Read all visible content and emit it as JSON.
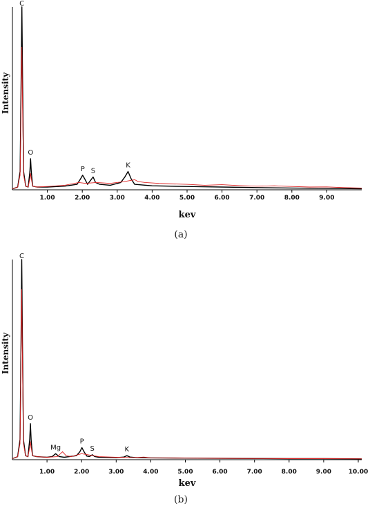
{
  "chart_data": [
    {
      "type": "line",
      "panel_label": "(a)",
      "xlabel": "kev",
      "ylabel": "Intensity",
      "xlim": [
        0,
        10
      ],
      "ylim": [
        0,
        100
      ],
      "x_ticks": [
        "1.00",
        "2.00",
        "3.00",
        "4.00",
        "5.00",
        "6.00",
        "7.00",
        "8.00",
        "9.00"
      ],
      "peak_labels": [
        {
          "text": "C",
          "x": 0.27,
          "y": 100
        },
        {
          "text": "O",
          "x": 0.52,
          "y": 17
        },
        {
          "text": "P",
          "x": 2.01,
          "y": 8
        },
        {
          "text": "S",
          "x": 2.31,
          "y": 7
        },
        {
          "text": "K",
          "x": 3.31,
          "y": 10
        }
      ],
      "series": [
        {
          "color": "#000000",
          "x": [
            0.0,
            0.15,
            0.22,
            0.25,
            0.27,
            0.29,
            0.32,
            0.38,
            0.45,
            0.5,
            0.52,
            0.54,
            0.58,
            0.7,
            1.0,
            1.5,
            1.85,
            1.95,
            2.01,
            2.07,
            2.15,
            2.23,
            2.31,
            2.38,
            2.5,
            2.8,
            3.1,
            3.22,
            3.31,
            3.4,
            3.5,
            4.0,
            5.0,
            6.0,
            7.0,
            8.0,
            9.0,
            10.0
          ],
          "y": [
            0.5,
            1.5,
            10,
            60,
            100,
            60,
            10,
            2,
            1.5,
            10,
            17,
            10,
            2,
            1.5,
            1.5,
            2,
            3,
            6,
            8,
            6,
            3,
            5,
            7,
            4,
            3,
            2.5,
            4,
            7,
            10,
            6,
            3,
            2.2,
            1.8,
            1.5,
            1.2,
            1.0,
            0.8,
            0.6
          ]
        },
        {
          "color": "#dd2222",
          "x": [
            0.0,
            0.15,
            0.22,
            0.25,
            0.27,
            0.29,
            0.32,
            0.38,
            0.45,
            0.5,
            0.52,
            0.54,
            0.58,
            0.7,
            1.0,
            1.5,
            1.9,
            2.1,
            2.4,
            2.8,
            3.2,
            3.5,
            3.6,
            3.8,
            4.2,
            4.6,
            5.0,
            5.5,
            6.0,
            6.5,
            7.0,
            7.5,
            8.0,
            8.5,
            9.0,
            9.5,
            10.0
          ],
          "y": [
            0.5,
            1.5,
            8,
            45,
            78,
            45,
            8,
            2,
            1.5,
            6,
            9,
            6,
            2,
            1.5,
            1.8,
            2.5,
            4,
            3.5,
            4,
            3.5,
            4.5,
            5.5,
            4.5,
            4,
            3.5,
            3.2,
            3,
            2.5,
            2.8,
            2.3,
            2,
            2.2,
            1.8,
            1.5,
            1.6,
            1.2,
            1.0
          ]
        }
      ]
    },
    {
      "type": "line",
      "panel_label": "(b)",
      "xlabel": "kev",
      "ylabel": "Intensity",
      "xlim": [
        0,
        10.1
      ],
      "ylim": [
        0,
        100
      ],
      "x_ticks": [
        "1.00",
        "2.00",
        "3.00",
        "4.00",
        "5.00",
        "6.00",
        "7.00",
        "8.00",
        "9.00",
        "10.00"
      ],
      "peak_labels": [
        {
          "text": "C",
          "x": 0.27,
          "y": 100
        },
        {
          "text": "O",
          "x": 0.52,
          "y": 18
        },
        {
          "text": "Mg",
          "x": 1.25,
          "y": 3
        },
        {
          "text": "P",
          "x": 2.01,
          "y": 6
        },
        {
          "text": "S",
          "x": 2.31,
          "y": 2.5
        },
        {
          "text": "K",
          "x": 3.31,
          "y": 2
        }
      ],
      "series": [
        {
          "color": "#000000",
          "x": [
            0.0,
            0.15,
            0.22,
            0.25,
            0.27,
            0.29,
            0.32,
            0.38,
            0.45,
            0.5,
            0.52,
            0.54,
            0.58,
            0.7,
            1.0,
            1.15,
            1.25,
            1.35,
            1.5,
            1.85,
            1.95,
            2.01,
            2.07,
            2.15,
            2.23,
            2.31,
            2.38,
            2.5,
            3.0,
            3.22,
            3.31,
            3.4,
            3.6,
            4.0,
            5.0,
            6.0,
            7.0,
            8.0,
            9.0,
            10.1
          ],
          "y": [
            0.5,
            1.5,
            10,
            60,
            100,
            60,
            10,
            2,
            1.5,
            10,
            18,
            10,
            2,
            1.5,
            1.2,
            1.6,
            3,
            1.6,
            1.2,
            2,
            4,
            6,
            4,
            1.8,
            1.6,
            2.5,
            1.6,
            1.2,
            1.0,
            1.3,
            2,
            1.3,
            1.0,
            0.9,
            0.8,
            0.7,
            0.6,
            0.5,
            0.5,
            0.4
          ]
        },
        {
          "color": "#dd2222",
          "x": [
            0.0,
            0.15,
            0.22,
            0.25,
            0.27,
            0.29,
            0.32,
            0.38,
            0.45,
            0.5,
            0.52,
            0.54,
            0.58,
            0.7,
            1.0,
            1.3,
            1.45,
            1.55,
            1.7,
            2.0,
            2.5,
            3.0,
            3.5,
            3.8,
            4.0,
            5.0,
            6.0,
            7.0,
            8.0,
            9.0,
            10.1
          ],
          "y": [
            0.5,
            1.5,
            8,
            50,
            85,
            50,
            8,
            2,
            1.5,
            6,
            9,
            6,
            2,
            1.5,
            1.2,
            1.5,
            4,
            2,
            1.5,
            3,
            1.5,
            1.2,
            1.0,
            1.3,
            0.9,
            0.8,
            0.7,
            0.6,
            0.5,
            0.5,
            0.4
          ]
        }
      ]
    }
  ]
}
